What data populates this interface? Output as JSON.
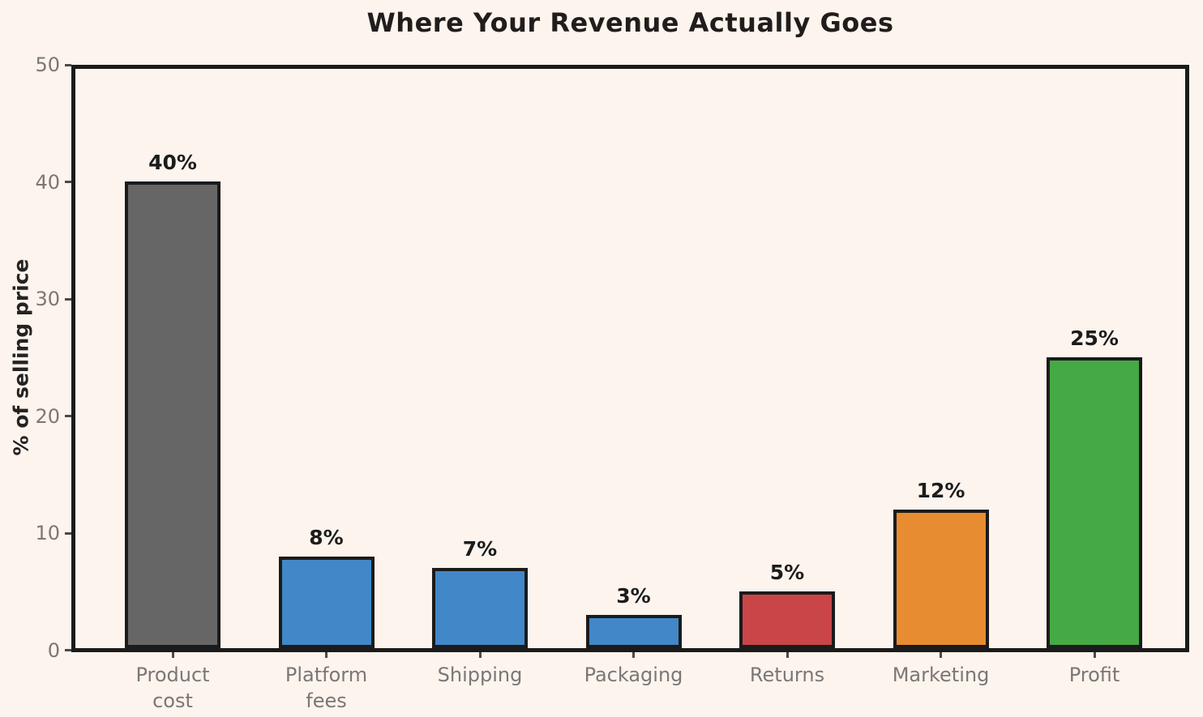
{
  "chart_data": {
    "type": "bar",
    "title": "Where Your Revenue Actually Goes",
    "xlabel": "",
    "ylabel": "% of selling price",
    "ylim": [
      0,
      50
    ],
    "yticks": [
      0,
      10,
      20,
      30,
      40,
      50
    ],
    "grid": false,
    "legend_position": "none",
    "categories": [
      "Product\ncost",
      "Platform\nfees",
      "Shipping",
      "Packaging",
      "Returns",
      "Marketing",
      "Profit"
    ],
    "values": [
      40,
      8,
      7,
      3,
      5,
      12,
      25
    ],
    "value_labels": [
      "40%",
      "8%",
      "7%",
      "3%",
      "5%",
      "12%",
      "25%"
    ],
    "bar_colors": [
      "#666666",
      "#4287C8",
      "#4287C8",
      "#4287C8",
      "#CA4548",
      "#E78C30",
      "#45A945"
    ],
    "colors": {
      "background": "#FCF4ED",
      "axis": "#1B1B1B",
      "bar_edge": "#1B1B1B",
      "tick_mark": "#4A4A4A",
      "tick_label": "#7B7776",
      "value_label": "#1C1C1C",
      "title": "#211D1D",
      "ylabel": "#262222"
    }
  }
}
